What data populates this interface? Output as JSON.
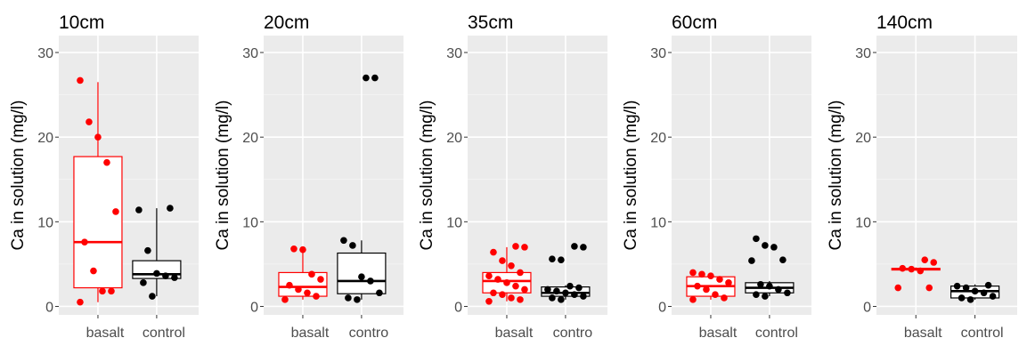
{
  "chart_data": [
    {
      "type": "box",
      "title": "10cm",
      "ylabel": "Ca in solution (mg/l)",
      "ylim": [
        -1,
        32
      ],
      "yticks": [
        "0",
        "10",
        "20",
        "30"
      ],
      "categories": [
        "basalt",
        "control"
      ],
      "series": [
        {
          "category": "basalt",
          "color": "#ff0000",
          "box": {
            "min": 0.5,
            "q1": 2.2,
            "median": 7.6,
            "q3": 17.7,
            "max": 26.5
          },
          "points": [
            0.5,
            1.8,
            1.8,
            4.2,
            7.6,
            11.2,
            17.0,
            20.0,
            21.8,
            26.7
          ]
        },
        {
          "category": "control",
          "color": "#000000",
          "box": {
            "min": 1.2,
            "q1": 3.3,
            "median": 3.8,
            "q3": 5.4,
            "max": 11.6
          },
          "points": [
            1.2,
            2.8,
            3.4,
            3.6,
            3.9,
            6.6,
            11.4,
            11.6
          ]
        }
      ]
    },
    {
      "type": "box",
      "title": "20cm",
      "ylabel": "Ca in solution (mg/l)",
      "ylim": [
        -1,
        32
      ],
      "yticks": [
        "0",
        "10",
        "20",
        "30"
      ],
      "categories": [
        "basalt",
        "contro"
      ],
      "series": [
        {
          "category": "basalt",
          "color": "#ff0000",
          "box": {
            "min": 0.8,
            "q1": 1.2,
            "median": 2.3,
            "q3": 4.0,
            "max": 7.0
          },
          "points": [
            0.8,
            1.2,
            1.6,
            2.0,
            2.5,
            3.2,
            3.8,
            6.7,
            6.8
          ]
        },
        {
          "category": "contro",
          "color": "#000000",
          "box": {
            "min": 0.8,
            "q1": 1.5,
            "median": 3.0,
            "q3": 6.3,
            "max": 7.8
          },
          "points": [
            0.8,
            1.0,
            1.6,
            3.0,
            3.5,
            7.2,
            7.8,
            27.0,
            27.0
          ]
        }
      ]
    },
    {
      "type": "box",
      "title": "35cm",
      "ylabel": "Ca in solution (mg/l)",
      "ylim": [
        -1,
        32
      ],
      "yticks": [
        "0",
        "10",
        "20",
        "30"
      ],
      "categories": [
        "basalt",
        "contro"
      ],
      "series": [
        {
          "category": "basalt",
          "color": "#ff0000",
          "box": {
            "min": 0.6,
            "q1": 1.6,
            "median": 3.0,
            "q3": 4.0,
            "max": 7.0
          },
          "points": [
            0.6,
            0.8,
            1.0,
            1.4,
            1.6,
            2.0,
            2.4,
            2.8,
            3.2,
            3.6,
            4.0,
            4.8,
            5.4,
            6.4,
            7.0,
            7.1
          ]
        },
        {
          "category": "contro",
          "color": "#000000",
          "box": {
            "min": 0.8,
            "q1": 1.2,
            "median": 1.6,
            "q3": 2.3,
            "max": 2.5
          },
          "points": [
            0.8,
            1.0,
            1.2,
            1.4,
            1.6,
            1.8,
            2.0,
            2.2,
            2.4,
            5.5,
            5.6,
            7.0,
            7.1
          ]
        }
      ]
    },
    {
      "type": "box",
      "title": "60cm",
      "ylabel": "Ca in solution (mg/l)",
      "ylim": [
        -1,
        32
      ],
      "yticks": [
        "0",
        "10",
        "20",
        "30"
      ],
      "categories": [
        "basalt",
        "control"
      ],
      "series": [
        {
          "category": "basalt",
          "color": "#ff0000",
          "box": {
            "min": 0.8,
            "q1": 1.2,
            "median": 2.4,
            "q3": 3.5,
            "max": 4.0
          },
          "points": [
            0.8,
            1.0,
            1.4,
            2.0,
            2.4,
            2.8,
            3.2,
            3.6,
            3.8,
            4.0
          ]
        },
        {
          "category": "control",
          "color": "#000000",
          "box": {
            "min": 1.2,
            "q1": 1.6,
            "median": 2.2,
            "q3": 2.8,
            "max": 3.0
          },
          "points": [
            1.2,
            1.4,
            1.6,
            2.0,
            2.4,
            2.6,
            5.4,
            5.5,
            7.0,
            7.2,
            8.0
          ]
        }
      ]
    },
    {
      "type": "box",
      "title": "140cm",
      "ylabel": "Ca in solution (mg/l)",
      "ylim": [
        -1,
        32
      ],
      "yticks": [
        "0",
        "10",
        "20",
        "30"
      ],
      "categories": [
        "basalt",
        "control"
      ],
      "series": [
        {
          "category": "basalt",
          "color": "#ff0000",
          "box": {
            "min": 4.2,
            "q1": 4.3,
            "median": 4.4,
            "q3": 4.5,
            "max": 4.6
          },
          "points": [
            2.2,
            2.2,
            4.2,
            4.4,
            4.5,
            5.2,
            5.5
          ]
        },
        {
          "category": "control",
          "color": "#000000",
          "box": {
            "min": 0.8,
            "q1": 1.0,
            "median": 1.8,
            "q3": 2.4,
            "max": 2.6
          },
          "points": [
            0.8,
            1.0,
            1.2,
            1.6,
            1.8,
            2.2,
            2.4,
            2.5
          ]
        }
      ]
    }
  ]
}
